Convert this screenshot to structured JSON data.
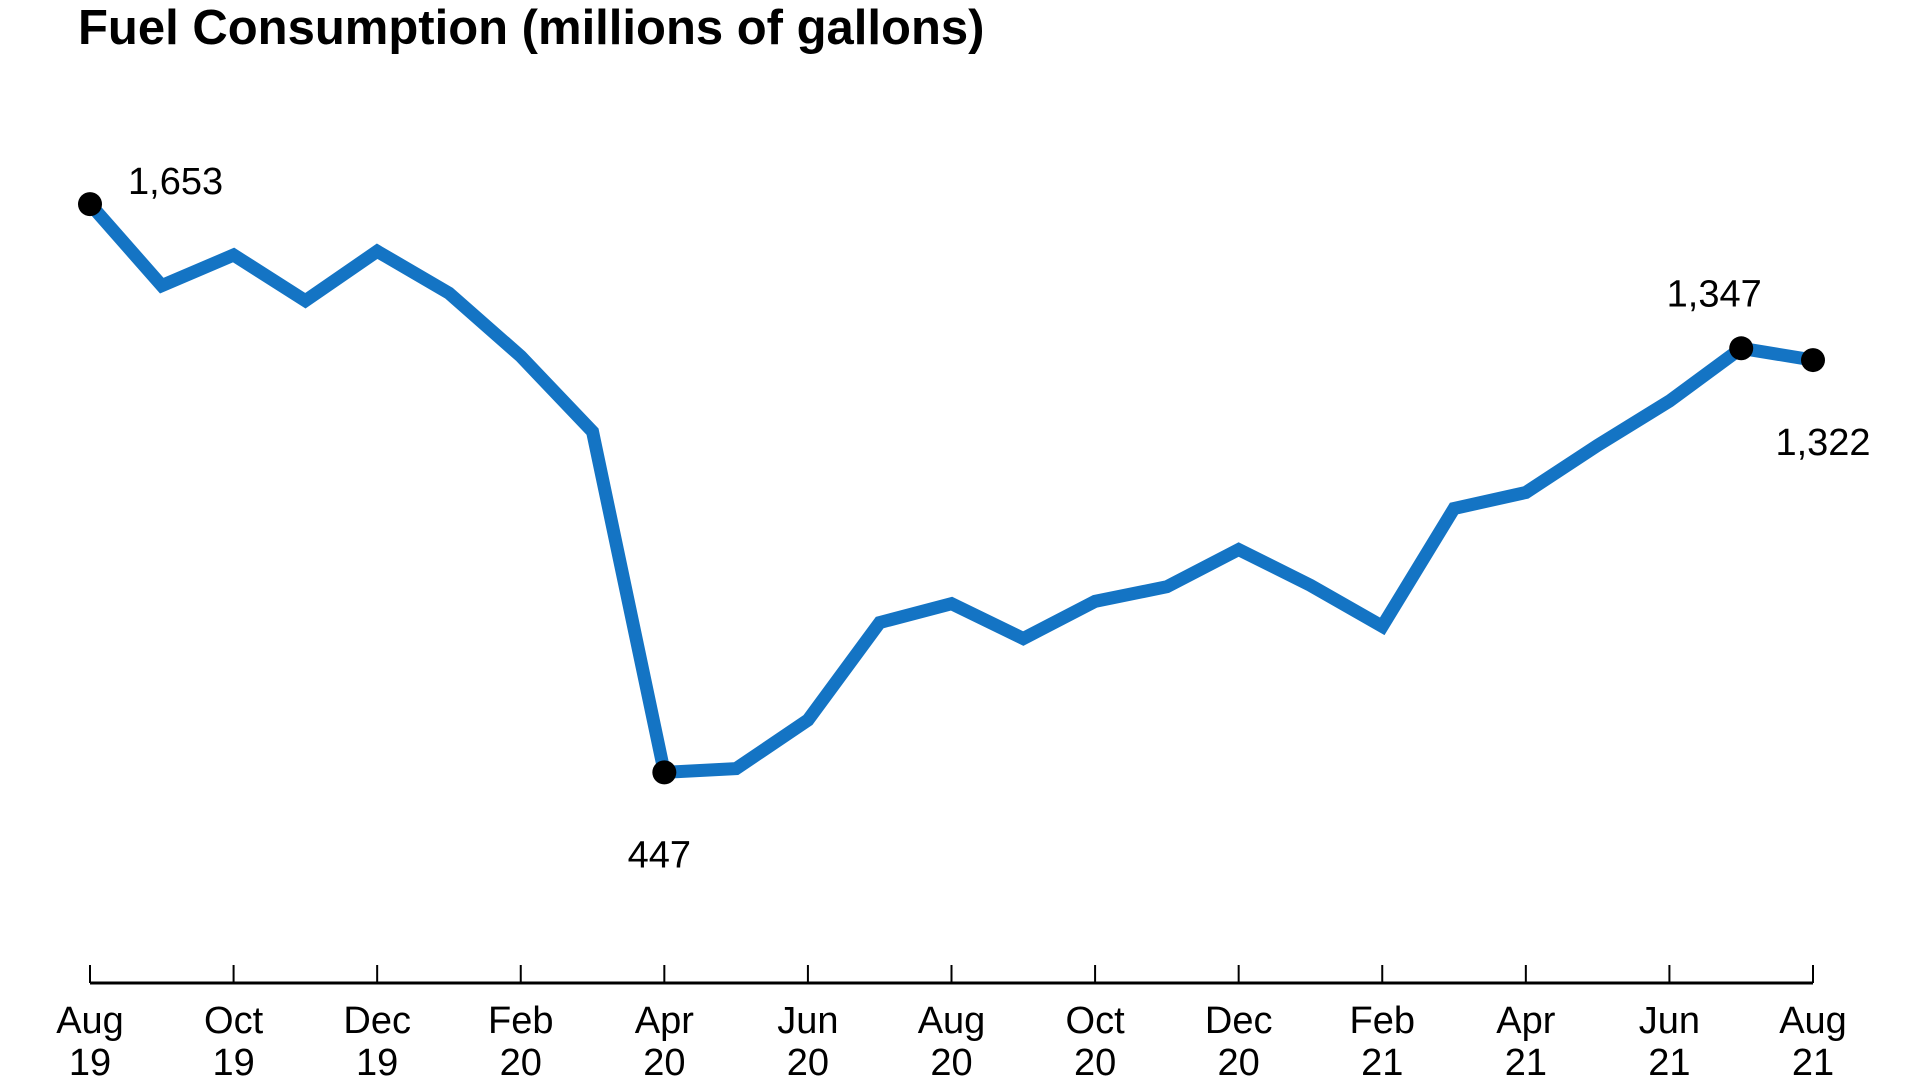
{
  "chart_data": {
    "type": "line",
    "title": "Fuel Consumption (millions of gallons)",
    "xlabel": "",
    "ylabel": "",
    "ylim": [
      0,
      1850
    ],
    "grid": false,
    "line_color": "#1474c4",
    "marker_color": "#000000",
    "x": [
      "Aug 19",
      "Sep 19",
      "Oct 19",
      "Nov 19",
      "Dec 19",
      "Jan 20",
      "Feb 20",
      "Mar 20",
      "Apr 20",
      "May 20",
      "Jun 20",
      "Jul 20",
      "Aug 20",
      "Sep 20",
      "Oct 20",
      "Nov 20",
      "Dec 20",
      "Jan 21",
      "Feb 21",
      "Mar 21",
      "Apr 21",
      "May 21",
      "Jun 21",
      "Jul 21",
      "Aug 21"
    ],
    "values": [
      1653,
      1480,
      1545,
      1448,
      1553,
      1464,
      1330,
      1170,
      447,
      455,
      558,
      765,
      805,
      731,
      810,
      841,
      920,
      844,
      757,
      1007,
      1041,
      1141,
      1235,
      1347,
      1322
    ],
    "tick_labels": [
      [
        "Aug",
        "19"
      ],
      [
        "Oct",
        "19"
      ],
      [
        "Dec",
        "19"
      ],
      [
        "Feb",
        "20"
      ],
      [
        "Apr",
        "20"
      ],
      [
        "Jun",
        "20"
      ],
      [
        "Aug",
        "20"
      ],
      [
        "Oct",
        "20"
      ],
      [
        "Dec",
        "20"
      ],
      [
        "Feb",
        "21"
      ],
      [
        "Apr",
        "21"
      ],
      [
        "Jun",
        "21"
      ],
      [
        "Aug",
        "21"
      ]
    ],
    "annotations": [
      {
        "index": 0,
        "text": "1,653",
        "position": "above-right"
      },
      {
        "index": 8,
        "text": "447",
        "position": "below"
      },
      {
        "index": 23,
        "text": "1,347",
        "position": "above"
      },
      {
        "index": 24,
        "text": "1,322",
        "position": "below"
      }
    ]
  }
}
